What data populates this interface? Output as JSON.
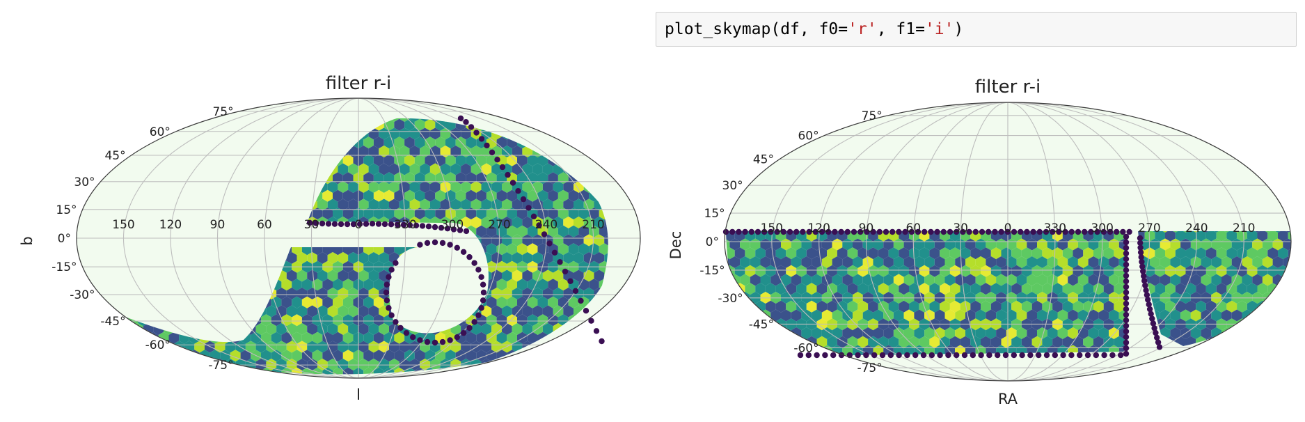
{
  "code_cell": {
    "func": "plot_skymap",
    "open_paren": "(",
    "arg0": "df",
    "sep1": ", f0=",
    "f0": "'r'",
    "sep2": ", f1=",
    "f1": "'i'",
    "close_paren": ")"
  },
  "colors": {
    "background": "#f2fbef",
    "grid": "#bdbdbd",
    "outline": "#3a3a3a",
    "edge_points": "#3a0f53",
    "colormap": [
      "#3b528b",
      "#21908c",
      "#5ec962",
      "#b5de2b",
      "#e6ea33"
    ]
  },
  "chart_data": [
    {
      "type": "heatmap",
      "projection": "mollweide",
      "title": "filter r-i",
      "xlabel": "l",
      "ylabel": "b",
      "x_tick_labels": [
        "150",
        "120",
        "90",
        "60",
        "30",
        "0",
        "330",
        "300",
        "270",
        "240",
        "210"
      ],
      "y_tick_labels": [
        "75°",
        "60°",
        "45°",
        "30°",
        "15°",
        "0°",
        "-15°",
        "-30°",
        "-45°",
        "-60°",
        "-75°"
      ],
      "grid": true,
      "colormap": "viridis",
      "coverage": "Galactic-coordinate footprint: curved band from the northern sky sweeping through the southern hemisphere, with a hole near l≈330–0°, b≈-45°–0°"
    },
    {
      "type": "heatmap",
      "projection": "mollweide",
      "title": "filter r-i",
      "xlabel": "RA",
      "ylabel": "Dec",
      "x_tick_labels": [
        "150",
        "120",
        "90",
        "60",
        "30",
        "0",
        "330",
        "300",
        "270",
        "240",
        "210"
      ],
      "y_tick_labels": [
        "75°",
        "60°",
        "45°",
        "30°",
        "15°",
        "0°",
        "-15°",
        "-30°",
        "-45°",
        "-60°",
        "-75°"
      ],
      "grid": true,
      "colormap": "viridis",
      "coverage": "Dec from about +2° down to about -63°, with a gap near RA≈285–270°"
    }
  ]
}
